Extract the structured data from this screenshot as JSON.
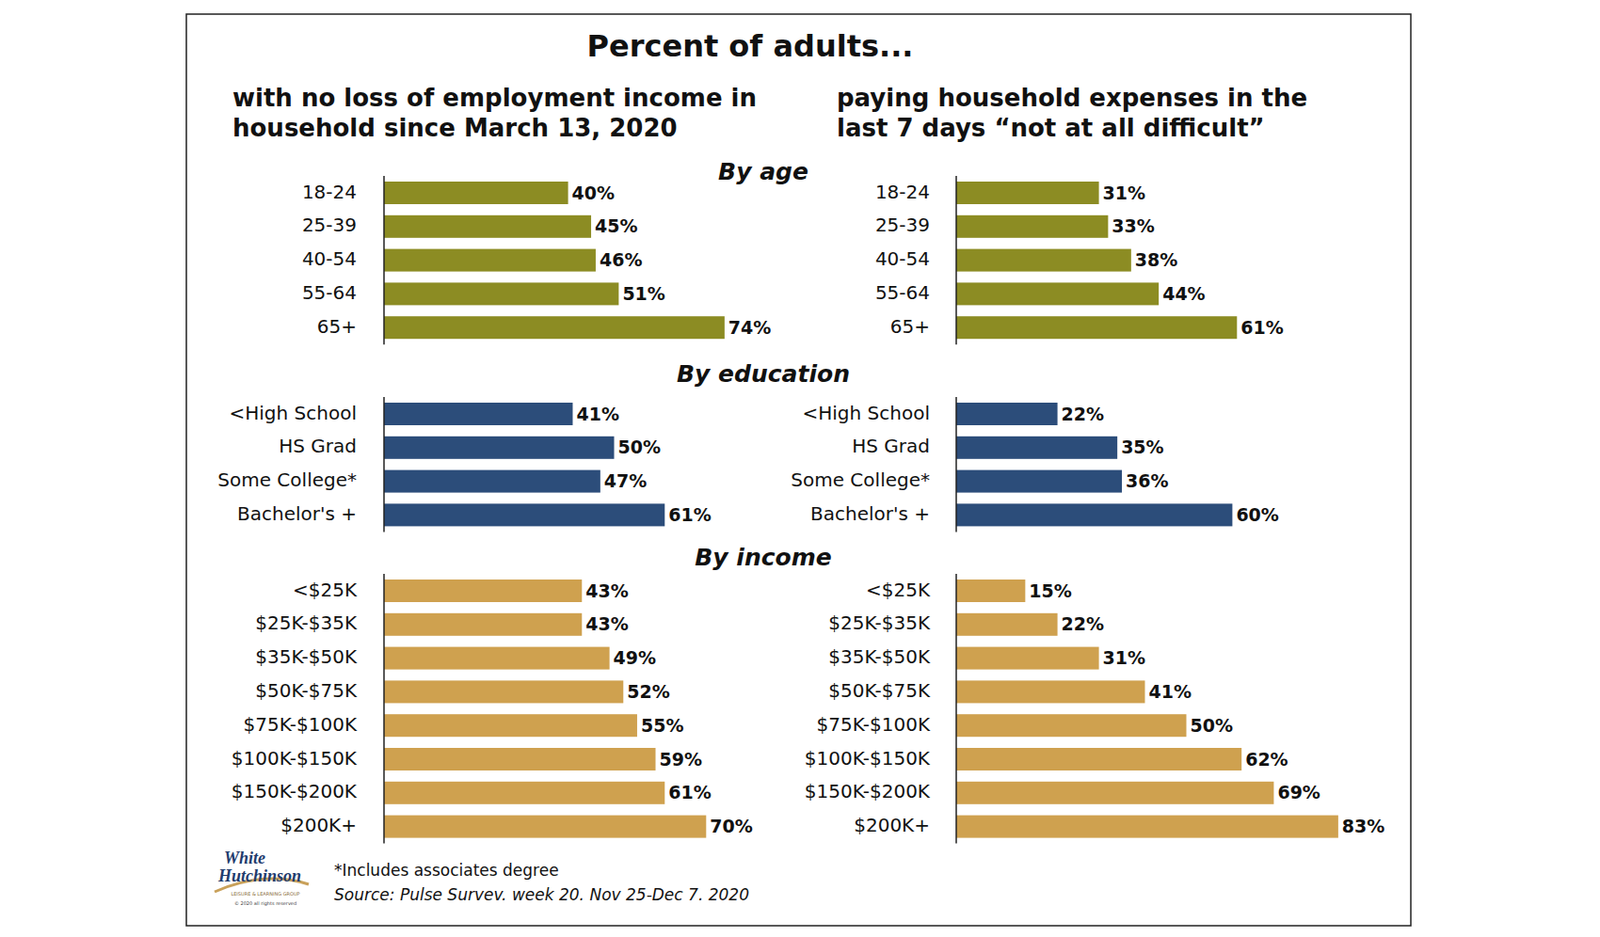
{
  "page": {
    "title": "Percent of adults...",
    "column_titles": [
      [
        "with no loss of employment income in",
        "household since March 13, 2020"
      ],
      [
        "paying household expenses in the",
        "last 7 days “not at all difficult”"
      ]
    ],
    "section_titles": [
      "By age",
      "By education",
      "By income"
    ],
    "footnote": "*Includes associates degree",
    "source": "Source: Pulse Survev. week 20. Nov 25-Dec 7. 2020",
    "logo": [
      "White",
      "Hutchinson",
      "LEISURE & LEARNING GROUP",
      "© 2020 all rights reserved"
    ]
  },
  "chart_data": [
    {
      "type": "bar",
      "orientation": "horizontal",
      "categories": [
        "18-24",
        "25-39",
        "40-54",
        "55-64",
        "65+"
      ],
      "values": [
        40,
        45,
        46,
        51,
        74
      ],
      "value_labels": [
        "40%",
        "45%",
        "46%",
        "51%",
        "74%"
      ],
      "color": "#8c8c23",
      "xlim": [
        0,
        100
      ],
      "data_labels": true,
      "tick_labels": "y"
    },
    {
      "type": "bar",
      "orientation": "horizontal",
      "categories": [
        "18-24",
        "25-39",
        "40-54",
        "55-64",
        "65+"
      ],
      "values": [
        31,
        33,
        38,
        44,
        61
      ],
      "value_labels": [
        "31%",
        "33%",
        "38%",
        "44%",
        "61%"
      ],
      "color": "#8c8c23",
      "xlim": [
        0,
        100
      ],
      "data_labels": true,
      "tick_labels": "y"
    },
    {
      "type": "bar",
      "orientation": "horizontal",
      "categories": [
        "<High School",
        "HS Grad",
        "Some College*",
        "Bachelor's +"
      ],
      "values": [
        41,
        50,
        47,
        61
      ],
      "value_labels": [
        "41%",
        "50%",
        "47%",
        "61%"
      ],
      "color": "#2c4d7a",
      "xlim": [
        0,
        100
      ],
      "data_labels": true,
      "tick_labels": "y"
    },
    {
      "type": "bar",
      "orientation": "horizontal",
      "categories": [
        "<High School",
        "HS Grad",
        "Some College*",
        "Bachelor's +"
      ],
      "values": [
        22,
        35,
        36,
        60
      ],
      "value_labels": [
        "22%",
        "35%",
        "36%",
        "60%"
      ],
      "color": "#2c4d7a",
      "xlim": [
        0,
        100
      ],
      "data_labels": true,
      "tick_labels": "y"
    },
    {
      "type": "bar",
      "orientation": "horizontal",
      "categories": [
        "<$25K",
        "$25K-$35K",
        "$35K-$50K",
        "$50K-$75K",
        "$75K-$100K",
        "$100K-$150K",
        "$150K-$200K",
        "$200K+"
      ],
      "values": [
        43,
        43,
        49,
        52,
        55,
        59,
        61,
        70
      ],
      "value_labels": [
        "43%",
        "43%",
        "49%",
        "52%",
        "55%",
        "59%",
        "61%",
        "70%"
      ],
      "color": "#cfa14f",
      "xlim": [
        0,
        100
      ],
      "data_labels": true,
      "tick_labels": "y"
    },
    {
      "type": "bar",
      "orientation": "horizontal",
      "categories": [
        "<$25K",
        "$25K-$35K",
        "$35K-$50K",
        "$50K-$75K",
        "$75K-$100K",
        "$100K-$150K",
        "$150K-$200K",
        "$200K+"
      ],
      "values": [
        15,
        22,
        31,
        41,
        50,
        62,
        69,
        83
      ],
      "value_labels": [
        "15%",
        "22%",
        "31%",
        "41%",
        "50%",
        "62%",
        "69%",
        "83%"
      ],
      "color": "#cfa14f",
      "xlim": [
        0,
        100
      ],
      "data_labels": true,
      "tick_labels": "y"
    }
  ]
}
